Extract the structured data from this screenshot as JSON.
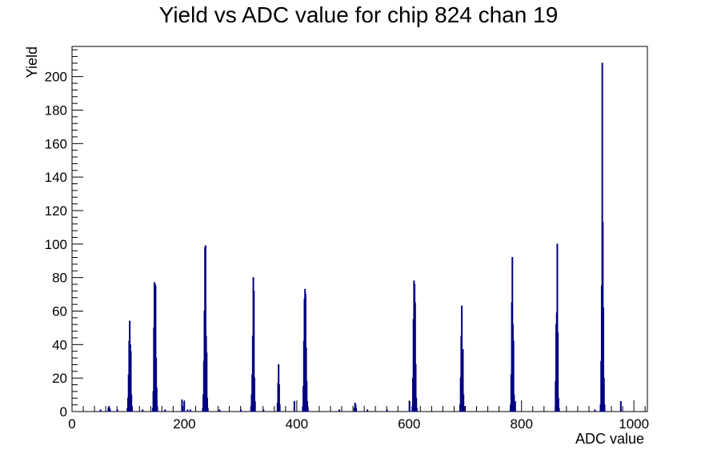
{
  "chart_data": {
    "type": "histogram",
    "title": "Yield vs ADC value for chip 824 chan 19",
    "xlabel": "ADC value",
    "ylabel": "Yield",
    "xlim": [
      0,
      1024
    ],
    "ylim": [
      0,
      218
    ],
    "x_ticks": [
      0,
      200,
      400,
      600,
      800,
      1000
    ],
    "y_ticks": [
      0,
      20,
      40,
      60,
      80,
      100,
      120,
      140,
      160,
      180,
      200
    ],
    "line_color": "#000080",
    "bin_width": 1,
    "bins": [
      {
        "x": 50,
        "y": 1
      },
      {
        "x": 64,
        "y": 2
      },
      {
        "x": 65,
        "y": 3
      },
      {
        "x": 66,
        "y": 2
      },
      {
        "x": 67,
        "y": 1
      },
      {
        "x": 80,
        "y": 1
      },
      {
        "x": 98,
        "y": 2
      },
      {
        "x": 99,
        "y": 8
      },
      {
        "x": 100,
        "y": 22
      },
      {
        "x": 101,
        "y": 42
      },
      {
        "x": 102,
        "y": 54
      },
      {
        "x": 103,
        "y": 40
      },
      {
        "x": 104,
        "y": 36
      },
      {
        "x": 105,
        "y": 10
      },
      {
        "x": 106,
        "y": 3
      },
      {
        "x": 125,
        "y": 1
      },
      {
        "x": 143,
        "y": 2
      },
      {
        "x": 144,
        "y": 12
      },
      {
        "x": 145,
        "y": 50
      },
      {
        "x": 146,
        "y": 77
      },
      {
        "x": 147,
        "y": 76
      },
      {
        "x": 148,
        "y": 75
      },
      {
        "x": 149,
        "y": 32
      },
      {
        "x": 150,
        "y": 14
      },
      {
        "x": 151,
        "y": 3
      },
      {
        "x": 165,
        "y": 1
      },
      {
        "x": 195,
        "y": 7
      },
      {
        "x": 196,
        "y": 3
      },
      {
        "x": 199,
        "y": 6
      },
      {
        "x": 205,
        "y": 1
      },
      {
        "x": 210,
        "y": 1
      },
      {
        "x": 232,
        "y": 2
      },
      {
        "x": 233,
        "y": 10
      },
      {
        "x": 234,
        "y": 30
      },
      {
        "x": 235,
        "y": 60
      },
      {
        "x": 236,
        "y": 98
      },
      {
        "x": 237,
        "y": 99
      },
      {
        "x": 238,
        "y": 45
      },
      {
        "x": 239,
        "y": 35
      },
      {
        "x": 240,
        "y": 8
      },
      {
        "x": 241,
        "y": 2
      },
      {
        "x": 262,
        "y": 1
      },
      {
        "x": 300,
        "y": 1
      },
      {
        "x": 318,
        "y": 3
      },
      {
        "x": 319,
        "y": 10
      },
      {
        "x": 320,
        "y": 22
      },
      {
        "x": 321,
        "y": 45
      },
      {
        "x": 322,
        "y": 80
      },
      {
        "x": 323,
        "y": 72
      },
      {
        "x": 324,
        "y": 20
      },
      {
        "x": 325,
        "y": 6
      },
      {
        "x": 340,
        "y": 1
      },
      {
        "x": 365,
        "y": 5
      },
      {
        "x": 366,
        "y": 17
      },
      {
        "x": 367,
        "y": 28
      },
      {
        "x": 368,
        "y": 16
      },
      {
        "x": 369,
        "y": 4
      },
      {
        "x": 395,
        "y": 6
      },
      {
        "x": 410,
        "y": 3
      },
      {
        "x": 411,
        "y": 15
      },
      {
        "x": 412,
        "y": 42
      },
      {
        "x": 413,
        "y": 67
      },
      {
        "x": 414,
        "y": 73
      },
      {
        "x": 415,
        "y": 70
      },
      {
        "x": 416,
        "y": 38
      },
      {
        "x": 417,
        "y": 18
      },
      {
        "x": 418,
        "y": 6
      },
      {
        "x": 419,
        "y": 2
      },
      {
        "x": 475,
        "y": 1
      },
      {
        "x": 502,
        "y": 2
      },
      {
        "x": 503,
        "y": 5
      },
      {
        "x": 504,
        "y": 4
      },
      {
        "x": 505,
        "y": 2
      },
      {
        "x": 525,
        "y": 1
      },
      {
        "x": 560,
        "y": 1
      },
      {
        "x": 600,
        "y": 6
      },
      {
        "x": 605,
        "y": 3
      },
      {
        "x": 606,
        "y": 20
      },
      {
        "x": 607,
        "y": 55
      },
      {
        "x": 608,
        "y": 78
      },
      {
        "x": 609,
        "y": 76
      },
      {
        "x": 610,
        "y": 65
      },
      {
        "x": 611,
        "y": 28
      },
      {
        "x": 612,
        "y": 8
      },
      {
        "x": 613,
        "y": 2
      },
      {
        "x": 690,
        "y": 4
      },
      {
        "x": 691,
        "y": 20
      },
      {
        "x": 692,
        "y": 45
      },
      {
        "x": 693,
        "y": 63
      },
      {
        "x": 694,
        "y": 25
      },
      {
        "x": 695,
        "y": 37
      },
      {
        "x": 696,
        "y": 10
      },
      {
        "x": 697,
        "y": 3
      },
      {
        "x": 780,
        "y": 4
      },
      {
        "x": 781,
        "y": 22
      },
      {
        "x": 782,
        "y": 65
      },
      {
        "x": 783,
        "y": 92
      },
      {
        "x": 784,
        "y": 52
      },
      {
        "x": 785,
        "y": 42
      },
      {
        "x": 786,
        "y": 10
      },
      {
        "x": 787,
        "y": 2
      },
      {
        "x": 788,
        "y": 6
      },
      {
        "x": 860,
        "y": 18
      },
      {
        "x": 861,
        "y": 52
      },
      {
        "x": 862,
        "y": 59
      },
      {
        "x": 863,
        "y": 100
      },
      {
        "x": 864,
        "y": 47
      },
      {
        "x": 865,
        "y": 8
      },
      {
        "x": 866,
        "y": 2
      },
      {
        "x": 930,
        "y": 1
      },
      {
        "x": 940,
        "y": 4
      },
      {
        "x": 941,
        "y": 30
      },
      {
        "x": 942,
        "y": 75
      },
      {
        "x": 943,
        "y": 208
      },
      {
        "x": 944,
        "y": 113
      },
      {
        "x": 945,
        "y": 62
      },
      {
        "x": 946,
        "y": 20
      },
      {
        "x": 947,
        "y": 4
      },
      {
        "x": 976,
        "y": 6
      }
    ]
  }
}
